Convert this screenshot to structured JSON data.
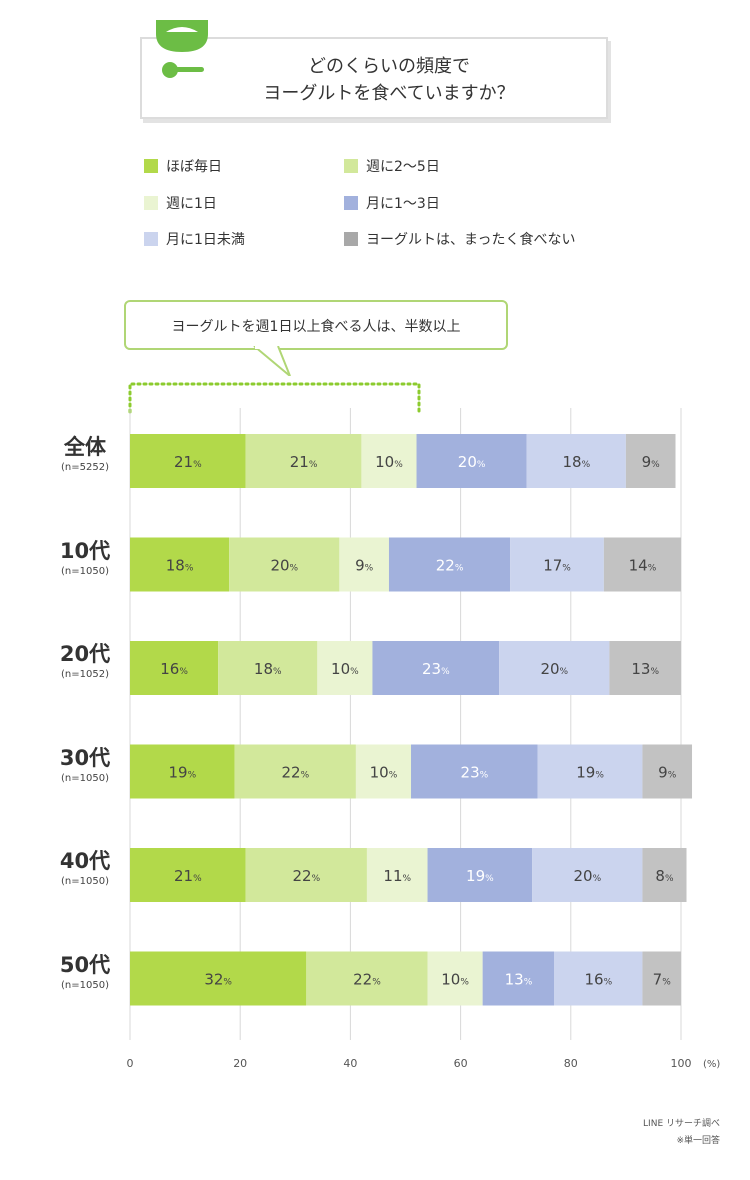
{
  "header": {
    "title_line1": "どのくらいの頻度で",
    "title_line2": "ヨーグルトを食べていますか？"
  },
  "callout": "ヨーグルトを週1日以上食べる人は、半数以上",
  "footer": {
    "source": "LINE リサーチ調べ",
    "note": "※単一回答"
  },
  "chart_data": {
    "type": "bar",
    "orientation": "horizontal",
    "stacked": true,
    "unit_label": "(%)",
    "categories": [
      "全体",
      "10代",
      "20代",
      "30代",
      "40代",
      "50代"
    ],
    "category_n": [
      "(n=5252)",
      "(n=1050)",
      "(n=1052)",
      "(n=1050)",
      "(n=1050)",
      "(n=1050)"
    ],
    "xlim": [
      0,
      100
    ],
    "x_ticks": [
      0,
      20,
      40,
      60,
      80,
      100
    ],
    "grid": true,
    "legend_position": "top",
    "series": [
      {
        "name": "ほぼ毎日",
        "color": "#b2d94a",
        "values": [
          21,
          18,
          16,
          19,
          21,
          32
        ]
      },
      {
        "name": "週に2〜5日",
        "color": "#d2e89b",
        "values": [
          21,
          20,
          18,
          22,
          22,
          22
        ]
      },
      {
        "name": "週に1日",
        "color": "#eaf4d2",
        "values": [
          10,
          9,
          10,
          10,
          11,
          10
        ]
      },
      {
        "name": "月に1〜3日",
        "color": "#a2b1dd",
        "values": [
          20,
          22,
          23,
          23,
          19,
          13
        ]
      },
      {
        "name": "月に1日未満",
        "color": "#cbd4ee",
        "values": [
          18,
          17,
          20,
          19,
          20,
          16
        ]
      },
      {
        "name": "ヨーグルトは、まったく食べない",
        "color": "#c2c2c2",
        "values": [
          9,
          14,
          13,
          9,
          8,
          7
        ]
      }
    ]
  }
}
